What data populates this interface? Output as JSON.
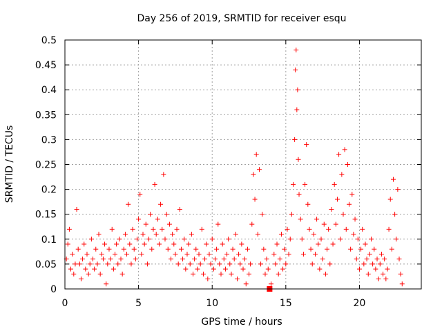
{
  "chart_data": {
    "type": "scatter",
    "title": "Day 256 of 2019, SRMTID for receiver esqu",
    "xlabel": "GPS time / hours",
    "ylabel": "SRMTID / TECUs",
    "xlim": [
      0,
      24.2
    ],
    "ylim": [
      0,
      0.5
    ],
    "x_ticks": [
      0,
      5,
      10,
      15,
      20
    ],
    "x_tick_labels": [
      "0",
      "5",
      "10",
      "15",
      "20"
    ],
    "y_ticks": [
      0,
      0.05,
      0.1,
      0.15,
      0.2,
      0.25,
      0.3,
      0.35,
      0.4,
      0.45,
      0.5
    ],
    "y_tick_labels": [
      "0",
      "0.05",
      "0.1",
      "0.15",
      "0.2",
      "0.25",
      "0.3",
      "0.35",
      "0.4",
      "0.45",
      "0.5"
    ],
    "grid": true,
    "marker": "plus",
    "color": "#ff0000",
    "series": [
      {
        "name": "SRMTID",
        "points": [
          [
            0.1,
            0.06
          ],
          [
            0.2,
            0.09
          ],
          [
            0.3,
            0.12
          ],
          [
            0.4,
            0.04
          ],
          [
            0.5,
            0.07
          ],
          [
            0.6,
            0.03
          ],
          [
            0.7,
            0.05
          ],
          [
            0.8,
            0.16
          ],
          [
            0.9,
            0.08
          ],
          [
            1.0,
            0.05
          ],
          [
            1.1,
            0.02
          ],
          [
            1.2,
            0.06
          ],
          [
            1.3,
            0.09
          ],
          [
            1.4,
            0.04
          ],
          [
            1.5,
            0.07
          ],
          [
            1.6,
            0.03
          ],
          [
            1.7,
            0.05
          ],
          [
            1.8,
            0.1
          ],
          [
            1.9,
            0.06
          ],
          [
            2.0,
            0.04
          ],
          [
            2.1,
            0.08
          ],
          [
            2.2,
            0.05
          ],
          [
            2.3,
            0.11
          ],
          [
            2.4,
            0.03
          ],
          [
            2.5,
            0.07
          ],
          [
            2.6,
            0.06
          ],
          [
            2.7,
            0.09
          ],
          [
            2.8,
            0.01
          ],
          [
            2.9,
            0.05
          ],
          [
            3.0,
            0.08
          ],
          [
            3.1,
            0.06
          ],
          [
            3.2,
            0.12
          ],
          [
            3.3,
            0.04
          ],
          [
            3.4,
            0.07
          ],
          [
            3.5,
            0.09
          ],
          [
            3.6,
            0.05
          ],
          [
            3.7,
            0.1
          ],
          [
            3.8,
            0.06
          ],
          [
            3.9,
            0.03
          ],
          [
            4.0,
            0.08
          ],
          [
            4.1,
            0.11
          ],
          [
            4.2,
            0.07
          ],
          [
            4.3,
            0.17
          ],
          [
            4.4,
            0.09
          ],
          [
            4.5,
            0.05
          ],
          [
            4.6,
            0.12
          ],
          [
            4.7,
            0.08
          ],
          [
            4.8,
            0.06
          ],
          [
            4.9,
            0.1
          ],
          [
            5.0,
            0.14
          ],
          [
            5.1,
            0.19
          ],
          [
            5.2,
            0.07
          ],
          [
            5.3,
            0.11
          ],
          [
            5.4,
            0.09
          ],
          [
            5.5,
            0.13
          ],
          [
            5.6,
            0.05
          ],
          [
            5.7,
            0.1
          ],
          [
            5.8,
            0.15
          ],
          [
            5.9,
            0.08
          ],
          [
            6.0,
            0.12
          ],
          [
            6.1,
            0.21
          ],
          [
            6.2,
            0.11
          ],
          [
            6.3,
            0.14
          ],
          [
            6.4,
            0.09
          ],
          [
            6.5,
            0.17
          ],
          [
            6.6,
            0.12
          ],
          [
            6.7,
            0.23
          ],
          [
            6.8,
            0.1
          ],
          [
            6.9,
            0.15
          ],
          [
            7.0,
            0.08
          ],
          [
            7.1,
            0.13
          ],
          [
            7.2,
            0.06
          ],
          [
            7.3,
            0.11
          ],
          [
            7.4,
            0.09
          ],
          [
            7.5,
            0.07
          ],
          [
            7.6,
            0.12
          ],
          [
            7.7,
            0.05
          ],
          [
            7.8,
            0.16
          ],
          [
            7.9,
            0.08
          ],
          [
            8.0,
            0.06
          ],
          [
            8.1,
            0.1
          ],
          [
            8.2,
            0.04
          ],
          [
            8.3,
            0.07
          ],
          [
            8.4,
            0.09
          ],
          [
            8.5,
            0.05
          ],
          [
            8.6,
            0.11
          ],
          [
            8.7,
            0.03
          ],
          [
            8.8,
            0.06
          ],
          [
            8.9,
            0.08
          ],
          [
            9.0,
            0.04
          ],
          [
            9.1,
            0.07
          ],
          [
            9.2,
            0.05
          ],
          [
            9.3,
            0.12
          ],
          [
            9.4,
            0.03
          ],
          [
            9.5,
            0.06
          ],
          [
            9.6,
            0.09
          ],
          [
            9.7,
            0.02
          ],
          [
            9.8,
            0.07
          ],
          [
            9.9,
            0.05
          ],
          [
            10.0,
            0.1
          ],
          [
            10.1,
            0.04
          ],
          [
            10.2,
            0.06
          ],
          [
            10.3,
            0.08
          ],
          [
            10.4,
            0.13
          ],
          [
            10.5,
            0.05
          ],
          [
            10.6,
            0.03
          ],
          [
            10.7,
            0.09
          ],
          [
            10.8,
            0.06
          ],
          [
            10.9,
            0.04
          ],
          [
            11.0,
            0.07
          ],
          [
            11.1,
            0.1
          ],
          [
            11.2,
            0.05
          ],
          [
            11.3,
            0.03
          ],
          [
            11.4,
            0.08
          ],
          [
            11.5,
            0.06
          ],
          [
            11.6,
            0.11
          ],
          [
            11.7,
            0.02
          ],
          [
            11.8,
            0.07
          ],
          [
            11.9,
            0.05
          ],
          [
            12.0,
            0.09
          ],
          [
            12.1,
            0.04
          ],
          [
            12.2,
            0.06
          ],
          [
            12.3,
            0.01
          ],
          [
            12.4,
            0.08
          ],
          [
            12.5,
            0.03
          ],
          [
            12.6,
            0.05
          ],
          [
            12.7,
            0.13
          ],
          [
            12.8,
            0.23
          ],
          [
            12.9,
            0.18
          ],
          [
            13.0,
            0.27
          ],
          [
            13.1,
            0.11
          ],
          [
            13.2,
            0.24
          ],
          [
            13.3,
            0.05
          ],
          [
            13.4,
            0.15
          ],
          [
            13.5,
            0.08
          ],
          [
            13.6,
            0.03
          ],
          [
            13.7,
            0.06
          ],
          [
            13.8,
            0.04
          ],
          [
            14.0,
            0.01
          ],
          [
            14.2,
            0.07
          ],
          [
            14.3,
            0.05
          ],
          [
            14.4,
            0.09
          ],
          [
            14.5,
            0.03
          ],
          [
            14.6,
            0.06
          ],
          [
            14.7,
            0.11
          ],
          [
            14.8,
            0.04
          ],
          [
            14.9,
            0.08
          ],
          [
            15.0,
            0.05
          ],
          [
            15.1,
            0.12
          ],
          [
            15.2,
            0.07
          ],
          [
            15.3,
            0.1
          ],
          [
            15.4,
            0.15
          ],
          [
            15.5,
            0.21
          ],
          [
            15.6,
            0.3
          ],
          [
            15.65,
            0.44
          ],
          [
            15.7,
            0.48
          ],
          [
            15.75,
            0.36
          ],
          [
            15.8,
            0.4
          ],
          [
            15.85,
            0.26
          ],
          [
            15.9,
            0.19
          ],
          [
            16.0,
            0.14
          ],
          [
            16.1,
            0.1
          ],
          [
            16.2,
            0.07
          ],
          [
            16.3,
            0.21
          ],
          [
            16.4,
            0.29
          ],
          [
            16.5,
            0.17
          ],
          [
            16.6,
            0.12
          ],
          [
            16.7,
            0.08
          ],
          [
            16.8,
            0.05
          ],
          [
            16.9,
            0.11
          ],
          [
            17.0,
            0.07
          ],
          [
            17.1,
            0.14
          ],
          [
            17.2,
            0.09
          ],
          [
            17.3,
            0.04
          ],
          [
            17.4,
            0.1
          ],
          [
            17.5,
            0.06
          ],
          [
            17.6,
            0.13
          ],
          [
            17.7,
            0.03
          ],
          [
            17.8,
            0.08
          ],
          [
            17.9,
            0.12
          ],
          [
            18.0,
            0.05
          ],
          [
            18.1,
            0.16
          ],
          [
            18.2,
            0.09
          ],
          [
            18.3,
            0.21
          ],
          [
            18.4,
            0.13
          ],
          [
            18.5,
            0.18
          ],
          [
            18.6,
            0.27
          ],
          [
            18.7,
            0.1
          ],
          [
            18.8,
            0.23
          ],
          [
            18.9,
            0.15
          ],
          [
            19.0,
            0.28
          ],
          [
            19.1,
            0.12
          ],
          [
            19.2,
            0.25
          ],
          [
            19.3,
            0.17
          ],
          [
            19.4,
            0.08
          ],
          [
            19.5,
            0.19
          ],
          [
            19.6,
            0.11
          ],
          [
            19.7,
            0.14
          ],
          [
            19.8,
            0.06
          ],
          [
            19.9,
            0.1
          ],
          [
            20.0,
            0.04
          ],
          [
            20.1,
            0.08
          ],
          [
            20.2,
            0.12
          ],
          [
            20.3,
            0.05
          ],
          [
            20.4,
            0.09
          ],
          [
            20.5,
            0.06
          ],
          [
            20.6,
            0.03
          ],
          [
            20.7,
            0.07
          ],
          [
            20.8,
            0.1
          ],
          [
            20.9,
            0.05
          ],
          [
            21.0,
            0.08
          ],
          [
            21.1,
            0.04
          ],
          [
            21.2,
            0.06
          ],
          [
            21.3,
            0.02
          ],
          [
            21.4,
            0.05
          ],
          [
            21.5,
            0.07
          ],
          [
            21.6,
            0.03
          ],
          [
            21.7,
            0.06
          ],
          [
            21.8,
            0.02
          ],
          [
            21.9,
            0.04
          ],
          [
            22.0,
            0.12
          ],
          [
            22.1,
            0.18
          ],
          [
            22.2,
            0.08
          ],
          [
            22.3,
            0.22
          ],
          [
            22.4,
            0.15
          ],
          [
            22.5,
            0.1
          ],
          [
            22.6,
            0.2
          ],
          [
            22.7,
            0.06
          ],
          [
            22.8,
            0.03
          ],
          [
            22.9,
            0.01
          ]
        ]
      }
    ],
    "extra_marks": [
      {
        "kind": "square",
        "x": 13.9,
        "y": 0.0
      }
    ]
  }
}
